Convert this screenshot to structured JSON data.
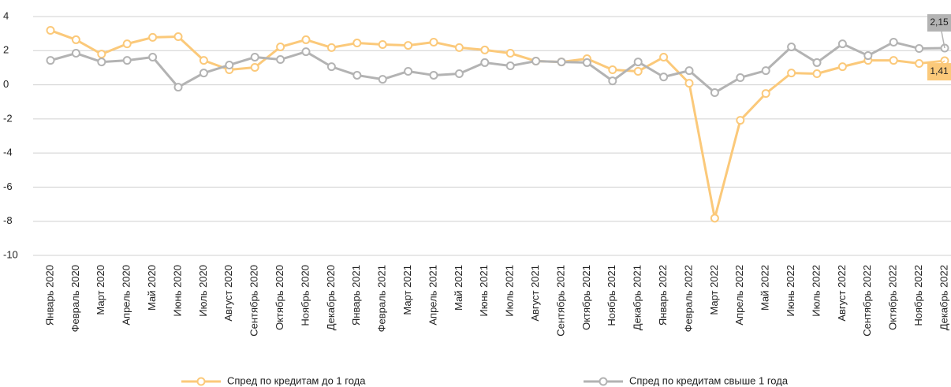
{
  "chart_data": {
    "type": "line",
    "categories": [
      "Январь 2020",
      "Февраль 2020",
      "Март 2020",
      "Апрель 2020",
      "Май 2020",
      "Июнь 2020",
      "Июль 2020",
      "Август 2020",
      "Сентябрь 2020",
      "Октябрь 2020",
      "Ноябрь 2020",
      "Декабрь 2020",
      "Январь 2021",
      "Февраль 2021",
      "Март 2021",
      "Апрель 2021",
      "Май 2021",
      "Июнь 2021",
      "Июль 2021",
      "Август 2021",
      "Сентябрь 2021",
      "Октябрь 2021",
      "Ноябрь 2021",
      "Декабрь 2021",
      "Январь 2022",
      "Февраль 2022",
      "Март 2022",
      "Апрель 2022",
      "Май 2022",
      "Июнь 2022",
      "Июль 2022",
      "Август 2022",
      "Сентябрь 2022",
      "Октябрь 2022",
      "Ноябрь 2022",
      "Декабрь 2022"
    ],
    "series": [
      {
        "name": "Спред по кредитам до 1 года",
        "color": "#fbc97a",
        "values": [
          3.19,
          2.64,
          1.8,
          2.4,
          2.78,
          2.82,
          1.43,
          0.88,
          1.02,
          2.22,
          2.64,
          2.18,
          2.45,
          2.36,
          2.31,
          2.5,
          2.18,
          2.04,
          1.85,
          1.39,
          1.34,
          1.53,
          0.88,
          0.79,
          1.62,
          0.09,
          -7.82,
          -2.08,
          -0.51,
          0.69,
          0.65,
          1.06,
          1.43,
          1.43,
          1.25,
          1.41
        ],
        "value_labels": [
          null,
          null,
          null,
          null,
          null,
          null,
          null,
          null,
          null,
          null,
          null,
          null,
          null,
          null,
          null,
          null,
          null,
          null,
          null,
          null,
          null,
          null,
          null,
          null,
          null,
          null,
          null,
          null,
          null,
          null,
          null,
          null,
          null,
          null,
          null,
          "1,41"
        ]
      },
      {
        "name": "Спред по кредитам свыше 1 года",
        "color": "#b3b3b3",
        "values": [
          1.43,
          1.85,
          1.34,
          1.43,
          1.62,
          -0.14,
          0.69,
          1.16,
          1.62,
          1.48,
          1.94,
          1.06,
          0.56,
          0.32,
          0.79,
          0.56,
          0.65,
          1.3,
          1.11,
          1.39,
          1.34,
          1.3,
          0.23,
          1.34,
          0.46,
          0.83,
          -0.46,
          0.42,
          0.83,
          2.22,
          1.3,
          2.4,
          1.71,
          2.5,
          2.13,
          2.15
        ],
        "value_labels": [
          null,
          null,
          null,
          null,
          null,
          null,
          null,
          null,
          null,
          null,
          null,
          null,
          null,
          null,
          null,
          null,
          null,
          null,
          null,
          null,
          null,
          null,
          null,
          null,
          null,
          null,
          null,
          null,
          null,
          null,
          null,
          null,
          null,
          null,
          null,
          "2,15"
        ]
      }
    ],
    "ylim": [
      -10,
      4
    ],
    "yticks": [
      -10,
      -8,
      -6,
      -4,
      -2,
      0,
      2,
      4
    ],
    "grid": true
  }
}
